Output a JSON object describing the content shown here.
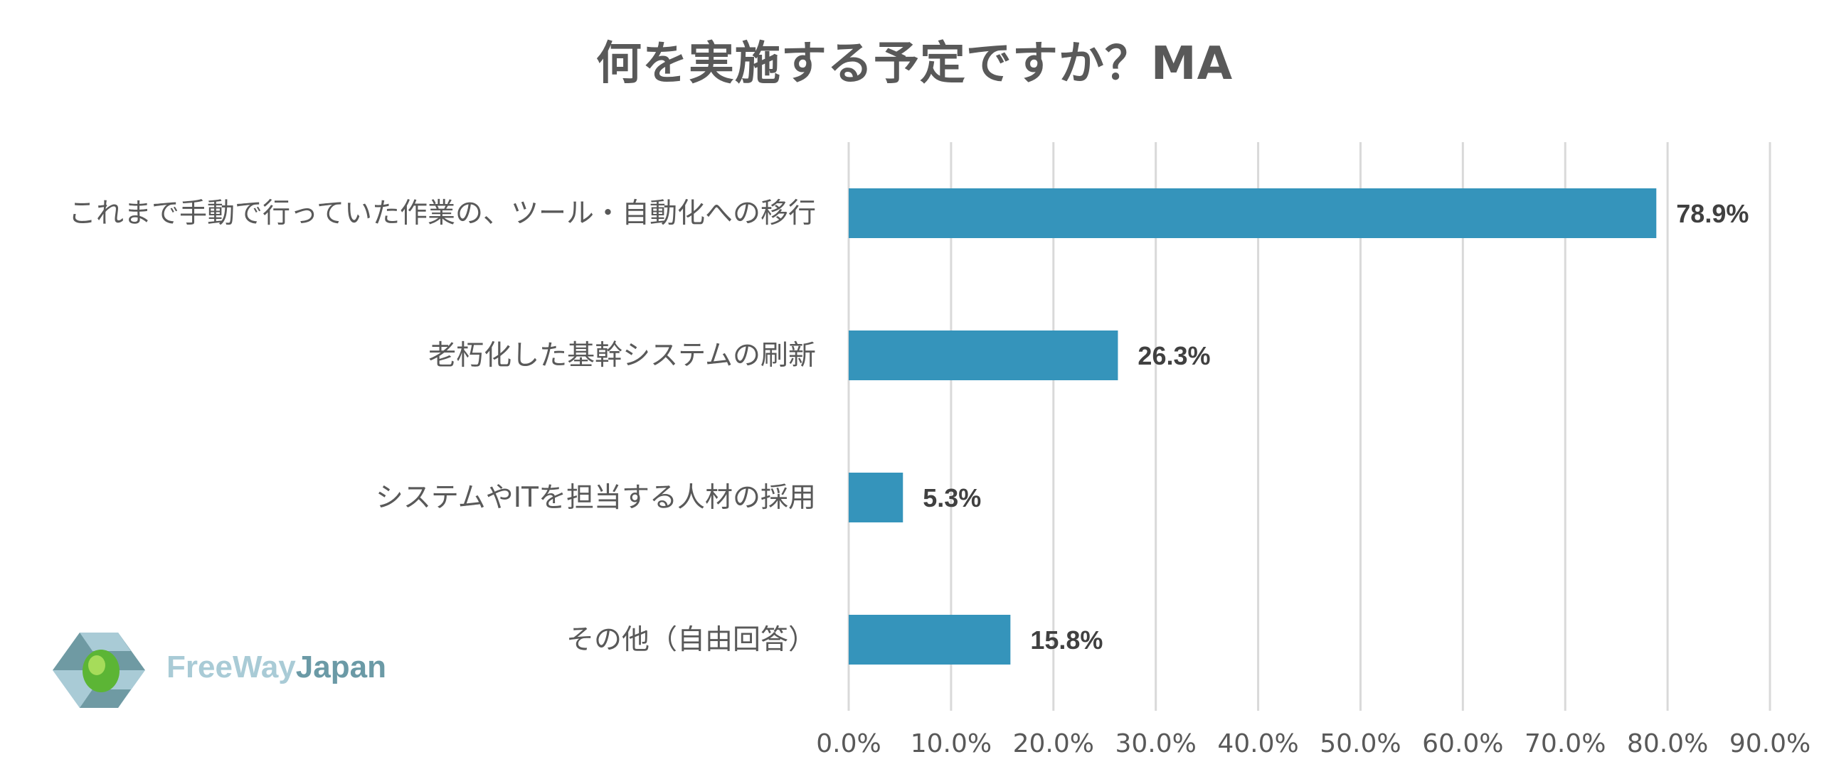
{
  "chart_data": {
    "type": "bar",
    "orientation": "horizontal",
    "title": "何を実施する予定ですか？MA",
    "categories": [
      "これまで手動で行っていた作業の、ツール・自動化への移行",
      "老朽化した基幹システムの刷新",
      "システムやITを担当する人材の採用",
      "その他（自由回答）"
    ],
    "values": [
      78.9,
      26.3,
      5.3,
      15.8
    ],
    "value_labels": [
      "78.9%",
      "26.3%",
      "5.3%",
      "15.8%"
    ],
    "xlim": [
      0,
      90
    ],
    "ticks": [
      0,
      10,
      20,
      30,
      40,
      50,
      60,
      70,
      80,
      90
    ],
    "tick_labels": [
      "0.0%",
      "10.0%",
      "20.0%",
      "30.0%",
      "40.0%",
      "50.0%",
      "60.0%",
      "70.0%",
      "80.0%",
      "90.0%"
    ],
    "grid": true,
    "bar_color": "#3594bb",
    "grid_color": "#d9d9d9"
  },
  "logo": {
    "text_free": "FreeWay",
    "text_japan": "Japan"
  }
}
